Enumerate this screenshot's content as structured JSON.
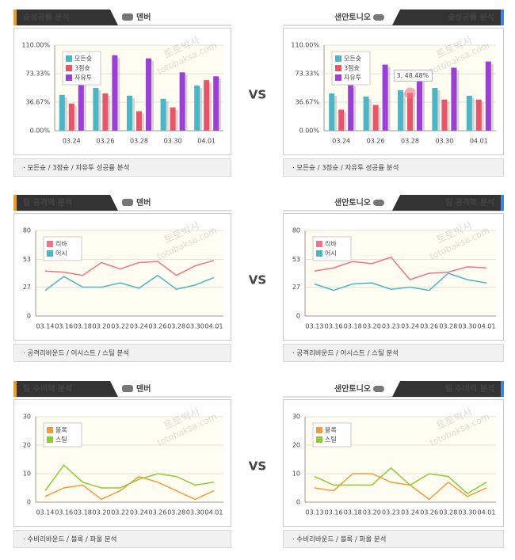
{
  "panels": [
    {
      "tab": "슛성공률 분석",
      "team": "덴버",
      "footer": "· 모든슛 / 3점슛 / 자유투 성공률 분석"
    },
    {
      "tab": "슛성공률 분석",
      "team": "샌안토니오",
      "footer": "· 모든슛 / 3점슛 / 자유투 성공률 분석"
    },
    {
      "tab": "팀 공격력 분석",
      "team": "덴버",
      "footer": "· 공격리바운드 / 어시스트 / 스틸 분석"
    },
    {
      "tab": "팀 공격력 분석",
      "team": "샌안토니오",
      "footer": "· 공격리바운드 / 어시스트 / 스틸 분석"
    },
    {
      "tab": "팀 수비력 분석",
      "team": "덴버",
      "footer": "· 수비리바운드 / 블록 / 파울 분석"
    },
    {
      "tab": "팀 수비력 분석",
      "team": "샌안토니오",
      "footer": "· 수비리바운드 / 블록 / 파울 분석"
    }
  ],
  "vs": [
    "VS",
    "VS",
    "VS"
  ],
  "watermark": [
    "토토박사",
    "totobaksa.com"
  ],
  "chart_data": [
    {
      "type": "bar",
      "categories": [
        "03.24",
        "03.26",
        "03.28",
        "03.30",
        "04.01"
      ],
      "series": [
        {
          "name": "모든슛",
          "color": "#4cb5c6",
          "values": [
            46,
            55,
            45,
            41,
            58
          ]
        },
        {
          "name": "3점슛",
          "color": "#e8546a",
          "values": [
            35,
            48,
            25,
            30,
            65
          ]
        },
        {
          "name": "자유투",
          "color": "#9c3fd6",
          "values": [
            63,
            97,
            93,
            75,
            70
          ]
        }
      ],
      "ylim": [
        0,
        110
      ],
      "yticks": [
        {
          "value": 0,
          "label": "0.00%"
        },
        {
          "value": 36.67,
          "label": "36.67%"
        },
        {
          "value": 73.33,
          "label": "73.33%"
        },
        {
          "value": 110,
          "label": "110.00%"
        }
      ],
      "grid": true,
      "legend": "upper-left"
    },
    {
      "type": "bar",
      "categories": [
        "03.24",
        "03.26",
        "03.28",
        "03.30",
        "04.01"
      ],
      "series": [
        {
          "name": "모든슛",
          "color": "#4cb5c6",
          "values": [
            48,
            44,
            52,
            55,
            45
          ]
        },
        {
          "name": "3점슛",
          "color": "#e8546a",
          "values": [
            27,
            33,
            48.48,
            40,
            40
          ]
        },
        {
          "name": "자유투",
          "color": "#9c3fd6",
          "values": [
            60,
            85,
            67,
            81,
            89
          ]
        }
      ],
      "ylim": [
        0,
        110
      ],
      "yticks": [
        {
          "value": 0,
          "label": "0.00%"
        },
        {
          "value": 36.67,
          "label": "36.67%"
        },
        {
          "value": 73.33,
          "label": "73.33%"
        },
        {
          "value": 110,
          "label": "110.00%"
        }
      ],
      "grid": true,
      "legend": "upper-left",
      "tooltip": "3, 48.48%"
    },
    {
      "type": "line",
      "categories": [
        "03.14",
        "03.16",
        "03.18",
        "03.20",
        "03.22",
        "03.24",
        "03.26",
        "03.28",
        "03.30",
        "04.01"
      ],
      "series": [
        {
          "name": "리바",
          "color": "#f07484",
          "values": [
            42,
            41,
            38,
            50,
            44,
            50,
            51,
            38,
            47,
            52
          ]
        },
        {
          "name": "어시",
          "color": "#4cb5c6",
          "values": [
            24,
            37,
            27,
            27,
            31,
            26,
            38,
            25,
            29,
            36
          ]
        }
      ],
      "ylim": [
        0,
        80
      ],
      "yticks": [
        0,
        27,
        53,
        80
      ],
      "grid": true,
      "legend": "upper-left"
    },
    {
      "type": "line",
      "categories": [
        "03.13",
        "03.16",
        "03.18",
        "03.20",
        "03.23",
        "03.24",
        "03.26",
        "03.28",
        "03.30",
        "04.01"
      ],
      "series": [
        {
          "name": "리바",
          "color": "#f07484",
          "values": [
            42,
            45,
            51,
            49,
            55,
            34,
            40,
            41,
            46,
            45
          ]
        },
        {
          "name": "어시",
          "color": "#4cb5c6",
          "values": [
            30,
            24,
            30,
            31,
            25,
            27,
            24,
            40,
            34,
            31
          ]
        }
      ],
      "ylim": [
        0,
        80
      ],
      "yticks": [
        0,
        27,
        53,
        80
      ],
      "grid": true,
      "legend": "upper-left"
    },
    {
      "type": "line",
      "categories": [
        "03.14",
        "03.16",
        "03.18",
        "03.20",
        "03.22",
        "03.24",
        "03.26",
        "03.28",
        "03.30",
        "04.01"
      ],
      "series": [
        {
          "name": "블록",
          "color": "#f39a3a",
          "values": [
            2,
            5,
            6,
            1,
            4,
            9,
            7,
            4,
            1,
            4
          ]
        },
        {
          "name": "스틸",
          "color": "#8ccc32",
          "values": [
            4,
            13,
            7,
            5,
            5,
            8,
            10,
            9,
            6,
            7
          ]
        }
      ],
      "ylim": [
        0,
        30
      ],
      "yticks": [
        0,
        10,
        20,
        30
      ],
      "grid": true,
      "legend": "upper-left"
    },
    {
      "type": "line",
      "categories": [
        "03.13",
        "03.16",
        "03.18",
        "03.20",
        "03.23",
        "03.24",
        "03.26",
        "03.28",
        "03.30",
        "04.01"
      ],
      "series": [
        {
          "name": "블록",
          "color": "#f39a3a",
          "values": [
            5,
            4,
            10,
            10,
            7,
            6,
            1,
            7,
            2,
            5
          ]
        },
        {
          "name": "스틸",
          "color": "#8ccc32",
          "values": [
            9,
            6,
            6,
            6,
            12,
            6,
            10,
            9,
            3,
            7
          ]
        }
      ],
      "ylim": [
        0,
        30
      ],
      "yticks": [
        0,
        10,
        20,
        30
      ],
      "grid": true,
      "legend": "upper-left"
    }
  ]
}
